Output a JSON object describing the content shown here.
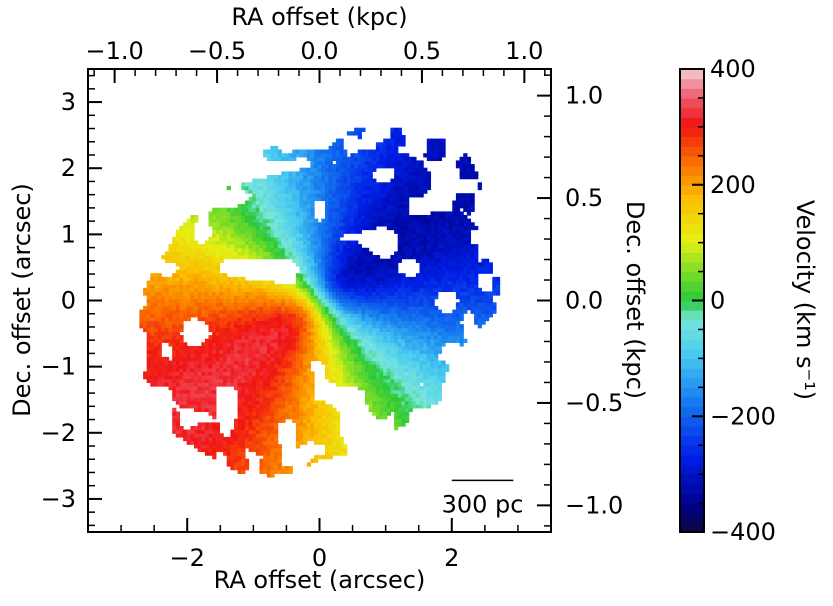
{
  "chart_data": {
    "type": "heatmap",
    "description_type": "velocity-map",
    "x": {
      "label": "RA offset (arcsec)",
      "lim": [
        -3.5,
        3.5
      ],
      "ticks": [
        -2,
        0,
        2
      ],
      "tick_labels": [
        "−2",
        "0",
        "2"
      ],
      "minor_step": 0.5
    },
    "y": {
      "label": "Dec. offset (arcsec)",
      "lim": [
        -3.5,
        3.5
      ],
      "ticks": [
        -3,
        -2,
        -1,
        0,
        1,
        2,
        3
      ],
      "tick_labels": [
        "−3",
        "−2",
        "−1",
        "0",
        "1",
        "2",
        "3"
      ],
      "minor_step": 0.2
    },
    "x2": {
      "label": "RA offset (kpc)",
      "lim": [
        -1.13,
        1.13
      ],
      "ticks": [
        -1.0,
        -0.5,
        0.0,
        0.5,
        1.0
      ],
      "tick_labels": [
        "−1.0",
        "−0.5",
        "0.0",
        "0.5",
        "1.0"
      ],
      "minor_step": 0.1
    },
    "y2": {
      "label": "Dec. offset (kpc)",
      "lim": [
        -1.13,
        1.13
      ],
      "ticks": [
        -1.0,
        -0.5,
        0.0,
        0.5,
        1.0
      ],
      "tick_labels": [
        "−1.0",
        "−0.5",
        "0.0",
        "0.5",
        "1.0"
      ],
      "minor_step": 0.1
    },
    "colorbar": {
      "label": "Velocity (km s⁻¹)",
      "lim": [
        -400,
        400
      ],
      "ticks": [
        -400,
        -200,
        0,
        200,
        400
      ],
      "tick_labels": [
        "−400",
        "−200",
        "0",
        "200",
        "400"
      ],
      "minor_step": 50,
      "colormap": "jet-like (dark blue → cyan → green → yellow → red → pink)"
    },
    "scalebar": {
      "label": "300 pc",
      "length_arcsec": 0.93
    },
    "disk_model": {
      "center": [
        0,
        0
      ],
      "radius_arcsec": 2.9,
      "axis_ratio": 0.78,
      "position_angle_deg": -38,
      "v_max": 340,
      "kinematic_axis": "redshifted lower-left, blueshifted upper-right"
    }
  }
}
